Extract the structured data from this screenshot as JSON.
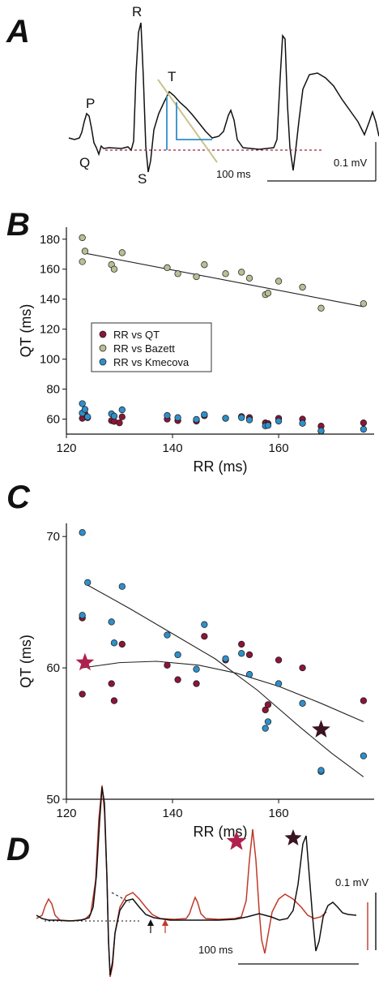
{
  "panels": {
    "a": "A",
    "b": "B",
    "c": "C",
    "d": "D"
  },
  "ecg_a": {
    "labels": {
      "p": "P",
      "q": "Q",
      "r": "R",
      "s": "S",
      "t": "T"
    },
    "scale_v": "0.1 mV",
    "scale_t": "100 ms"
  },
  "ecg_d": {
    "scale_v": "0.1 mV",
    "scale_t": "100 ms"
  },
  "colors": {
    "qt": "#8b1538",
    "bazett": "#b9be94",
    "kmecova": "#2f8fc9",
    "trace_red": "#c0392b",
    "trace_black": "#111111",
    "tangent": "#c9c28a",
    "baseline": "#a0203a",
    "interval": "#2f8fc9"
  },
  "chart_data": [
    {
      "panel": "B",
      "type": "scatter",
      "xlabel": "RR (ms)",
      "ylabel": "QT (ms)",
      "xlim": [
        120,
        178
      ],
      "ylim": [
        50,
        188
      ],
      "xticks": [
        120,
        140,
        160
      ],
      "yticks": [
        60,
        80,
        100,
        120,
        140,
        160,
        180
      ],
      "legend_position": "center-left",
      "series": [
        {
          "name": "RR vs QT",
          "color": "#8b1538",
          "points": [
            [
              123,
              60.5
            ],
            [
              123,
              64
            ],
            [
              123.5,
              63.5
            ],
            [
              124,
              61
            ],
            [
              128.5,
              59
            ],
            [
              129,
              58.5
            ],
            [
              130,
              57.5
            ],
            [
              130.5,
              61.5
            ],
            [
              139,
              60
            ],
            [
              141,
              59
            ],
            [
              144.5,
              58.7
            ],
            [
              146,
              62.3
            ],
            [
              150,
              60.5
            ],
            [
              153,
              61.7
            ],
            [
              154.5,
              61
            ],
            [
              157.5,
              57.5
            ],
            [
              158,
              57
            ],
            [
              160,
              60.5
            ],
            [
              164.5,
              60
            ],
            [
              168,
              55.3
            ],
            [
              176,
              57.5
            ]
          ]
        },
        {
          "name": "RR vs Bazett",
          "color": "#b9be94",
          "points": [
            [
              123,
              181
            ],
            [
              123,
              165
            ],
            [
              123.5,
              172
            ],
            [
              128.5,
              163
            ],
            [
              129,
              160
            ],
            [
              130.5,
              171
            ],
            [
              139,
              161
            ],
            [
              141,
              157
            ],
            [
              144.5,
              155
            ],
            [
              146,
              163
            ],
            [
              150,
              157
            ],
            [
              153,
              158
            ],
            [
              154.5,
              154
            ],
            [
              157.5,
              143
            ],
            [
              158,
              144
            ],
            [
              160,
              152
            ],
            [
              164.5,
              148
            ],
            [
              168,
              134
            ],
            [
              176,
              137
            ]
          ]
        },
        {
          "name": "RR vs Kmecova",
          "color": "#2f8fc9",
          "points": [
            [
              123,
              70.3
            ],
            [
              123,
              64
            ],
            [
              123.5,
              66.5
            ],
            [
              124,
              61.5
            ],
            [
              128.5,
              63.5
            ],
            [
              129,
              62
            ],
            [
              130.5,
              66.2
            ],
            [
              139,
              62.4
            ],
            [
              141,
              61
            ],
            [
              144.5,
              59.8
            ],
            [
              146,
              63
            ],
            [
              150,
              60.6
            ],
            [
              153,
              61
            ],
            [
              154.5,
              59.5
            ],
            [
              157.5,
              55.5
            ],
            [
              158,
              55.8
            ],
            [
              160,
              58.7
            ],
            [
              164.5,
              57.2
            ],
            [
              168,
              52
            ],
            [
              168,
              52.2
            ],
            [
              176,
              53.2
            ]
          ]
        }
      ],
      "fits": [
        {
          "series": "RR vs Bazett",
          "points": [
            [
              123,
              171
            ],
            [
              176,
              135
            ]
          ]
        }
      ]
    },
    {
      "panel": "C",
      "type": "scatter",
      "xlabel": "RR (ms)",
      "ylabel": "QT (ms)",
      "xlim": [
        120,
        178
      ],
      "ylim": [
        50,
        71
      ],
      "xticks": [
        120,
        140,
        160
      ],
      "yticks": [
        50,
        60,
        70
      ],
      "series": [
        {
          "name": "RR vs QT",
          "color": "#8b1538",
          "points": [
            [
              123,
              63.8
            ],
            [
              123,
              58
            ],
            [
              128.5,
              58.8
            ],
            [
              129,
              57.5
            ],
            [
              130.5,
              61.8
            ],
            [
              139,
              60.2
            ],
            [
              141,
              59.1
            ],
            [
              144.5,
              58.8
            ],
            [
              146,
              62.4
            ],
            [
              150,
              60.6
            ],
            [
              153,
              61.8
            ],
            [
              154.5,
              61
            ],
            [
              157.5,
              56.8
            ],
            [
              158,
              57.2
            ],
            [
              160,
              60.6
            ],
            [
              164.5,
              60
            ],
            [
              176,
              57.5
            ]
          ]
        },
        {
          "name": "RR vs Kmecova",
          "color": "#2f8fc9",
          "points": [
            [
              123,
              70.3
            ],
            [
              123,
              64
            ],
            [
              124,
              66.5
            ],
            [
              128.5,
              63.5
            ],
            [
              129,
              61.9
            ],
            [
              130.5,
              66.2
            ],
            [
              139,
              62.5
            ],
            [
              141,
              61
            ],
            [
              144.5,
              59.9
            ],
            [
              146,
              63.3
            ],
            [
              150,
              60.7
            ],
            [
              153,
              61.1
            ],
            [
              154.5,
              59.5
            ],
            [
              157.5,
              55.4
            ],
            [
              158,
              55.9
            ],
            [
              160,
              58.8
            ],
            [
              164.5,
              57.3
            ],
            [
              168,
              52.1
            ],
            [
              168,
              52.2
            ],
            [
              176,
              53.3
            ]
          ]
        }
      ],
      "fits": [
        {
          "series": "RR vs QT",
          "points": [
            [
              123,
              60
            ],
            [
              130,
              60.4
            ],
            [
              137,
              60.5
            ],
            [
              145,
              60.2
            ],
            [
              152,
              59.6
            ],
            [
              160,
              58.6
            ],
            [
              168,
              57.3
            ],
            [
              176,
              55.9
            ]
          ]
        },
        {
          "series": "RR vs Kmecova",
          "points": [
            [
              124,
              66.3
            ],
            [
              132,
              64.5
            ],
            [
              140,
              62.6
            ],
            [
              148,
              60.7
            ],
            [
              156,
              58.3
            ],
            [
              164,
              55.5
            ],
            [
              170,
              53.5
            ],
            [
              176,
              51.7
            ]
          ]
        }
      ],
      "markers": [
        {
          "shape": "star",
          "x": 123.5,
          "y": 60.4,
          "color": "#b0204e"
        },
        {
          "shape": "star",
          "x": 168,
          "y": 55.3,
          "color": "#3a1420"
        }
      ]
    }
  ]
}
